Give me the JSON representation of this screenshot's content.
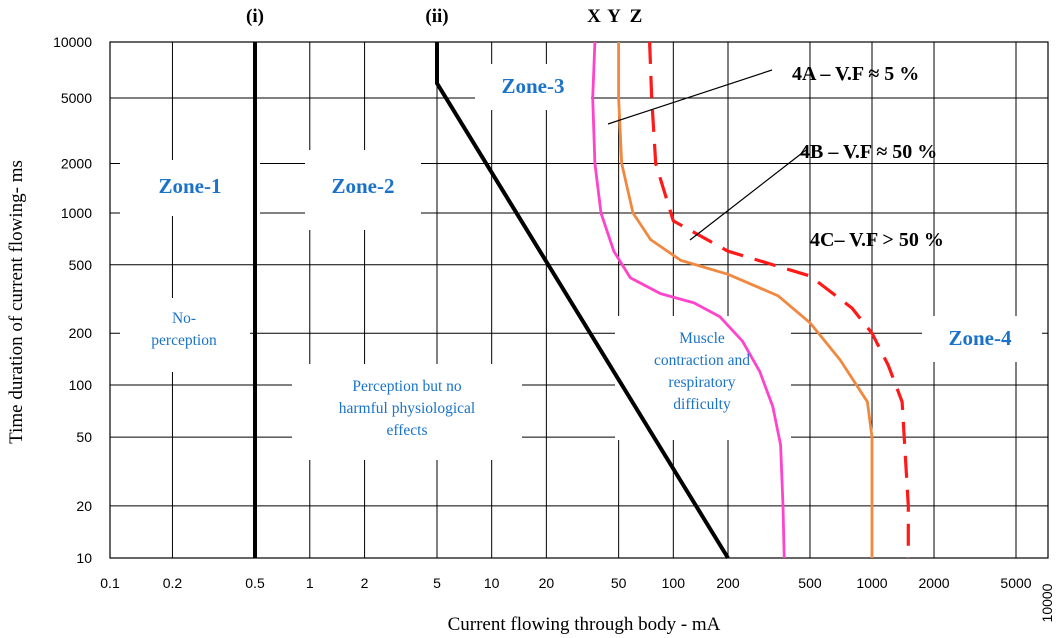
{
  "chart_data": {
    "type": "line",
    "title": "",
    "xlabel": "Current flowing through body - mA",
    "ylabel": "Time duration of current flowing- ms",
    "x_scale": "log",
    "y_scale": "log",
    "xlim": [
      0.1,
      10000
    ],
    "ylim": [
      10,
      10000
    ],
    "x_tick_labels": [
      "0.1",
      "0.2",
      "0.5",
      "1",
      "2",
      "5",
      "10",
      "20",
      "50",
      "100",
      "200",
      "500",
      "1000",
      "2000",
      "5000",
      "10000"
    ],
    "x_tick_values": [
      0.1,
      0.2,
      0.5,
      1,
      2,
      5,
      10,
      20,
      50,
      100,
      200,
      500,
      1000,
      2000,
      5000,
      10000
    ],
    "y_tick_labels": [
      "10000",
      "5000",
      "2000",
      "1000",
      "500",
      "200",
      "100",
      "50",
      "20",
      "10"
    ],
    "y_tick_values": [
      10000,
      5000,
      2000,
      1000,
      500,
      200,
      100,
      50,
      20,
      10
    ],
    "grid": true,
    "series": [
      {
        "name": "(i)",
        "color": "#000000",
        "style": "solid",
        "points": [
          [
            0.5,
            10
          ],
          [
            0.5,
            10000
          ]
        ]
      },
      {
        "name": "(ii)",
        "color": "#000000",
        "style": "solid",
        "points": [
          [
            5,
            10000
          ],
          [
            5,
            6000
          ],
          [
            200,
            10
          ]
        ]
      },
      {
        "name": "X",
        "color": "#ff44cc",
        "style": "solid",
        "points": [
          [
            37,
            10000
          ],
          [
            36,
            5000
          ],
          [
            37,
            2000
          ],
          [
            40,
            1000
          ],
          [
            47,
            600
          ],
          [
            58,
            420
          ],
          [
            85,
            340
          ],
          [
            130,
            300
          ],
          [
            180,
            250
          ],
          [
            235,
            180
          ],
          [
            285,
            120
          ],
          [
            330,
            75
          ],
          [
            360,
            45
          ],
          [
            370,
            20
          ],
          [
            375,
            10
          ]
        ]
      },
      {
        "name": "Y",
        "color": "#f08840",
        "style": "solid",
        "points": [
          [
            50,
            10000
          ],
          [
            50,
            5000
          ],
          [
            52,
            2000
          ],
          [
            60,
            1000
          ],
          [
            75,
            700
          ],
          [
            110,
            530
          ],
          [
            200,
            440
          ],
          [
            350,
            330
          ],
          [
            500,
            230
          ],
          [
            700,
            140
          ],
          [
            950,
            80
          ],
          [
            1000,
            50
          ],
          [
            1000,
            20
          ],
          [
            1000,
            10
          ]
        ]
      },
      {
        "name": "Z",
        "color": "#ff1a1a",
        "style": "dashed",
        "points": [
          [
            74,
            10000
          ],
          [
            76,
            5000
          ],
          [
            80,
            2000
          ],
          [
            100,
            900
          ],
          [
            200,
            600
          ],
          [
            500,
            430
          ],
          [
            800,
            280
          ],
          [
            1000,
            200
          ],
          [
            1200,
            130
          ],
          [
            1400,
            80
          ],
          [
            1450,
            40
          ],
          [
            1500,
            20
          ],
          [
            1500,
            10
          ]
        ]
      }
    ],
    "curve_labels": [
      "(i)",
      "(ii)",
      "X",
      "Y",
      "Z"
    ],
    "annotations": [
      {
        "text": "4A – V.F ≈  5 %"
      },
      {
        "text": "4B – V.F ≈ 50 %"
      },
      {
        "text": "4C– V.F > 50 %"
      }
    ],
    "zones": [
      {
        "name": "Zone-1",
        "desc": [
          "No-",
          "perception"
        ]
      },
      {
        "name": "Zone-2",
        "desc": [
          "Perception but no",
          "harmful physiological",
          "effects"
        ]
      },
      {
        "name": "Zone-3",
        "desc": [
          "Muscle",
          "contraction and",
          "respiratory",
          "difficulty"
        ]
      },
      {
        "name": "Zone-4",
        "desc": []
      }
    ],
    "colors": {
      "zone_text": "#1a73c8",
      "grid": "#000000"
    }
  }
}
